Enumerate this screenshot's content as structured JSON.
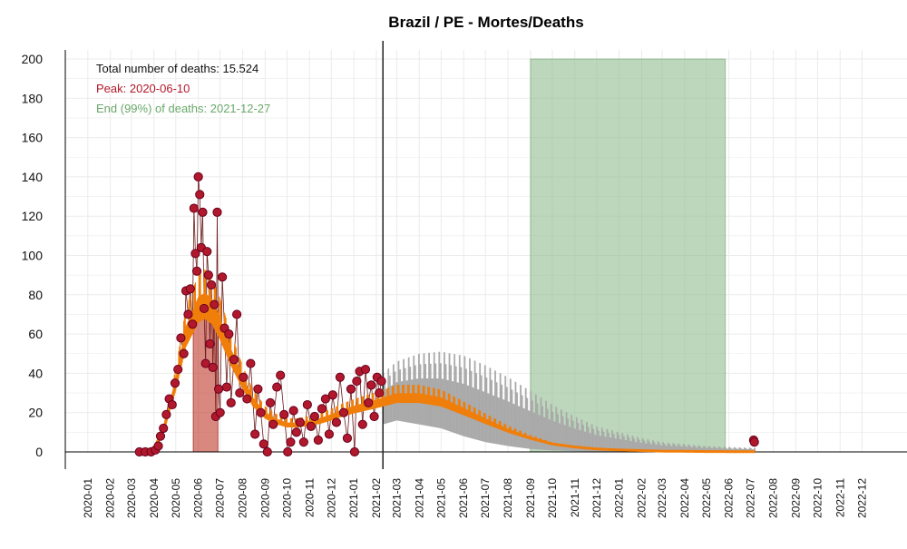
{
  "chart_data": {
    "type": "scatter",
    "title": "Brazil / PE - Mortes/Deaths",
    "xlabel": "",
    "ylabel": "",
    "ylim": [
      0,
      200
    ],
    "xlim": [
      "2019-12-01",
      "2023-02-01"
    ],
    "y_ticks": [
      0,
      20,
      40,
      60,
      80,
      100,
      120,
      140,
      160,
      180,
      200
    ],
    "x_ticks": [
      "2020-01",
      "2020-02",
      "2020-03",
      "2020-04",
      "2020-05",
      "2020-06",
      "2020-07",
      "2020-08",
      "2020-09",
      "2020-10",
      "2020-11",
      "2020-12",
      "2021-01",
      "2021-02",
      "2021-03",
      "2021-04",
      "2021-05",
      "2021-06",
      "2021-07",
      "2021-08",
      "2021-09",
      "2021-10",
      "2021-11",
      "2021-12",
      "2022-01",
      "2022-02",
      "2022-03",
      "2022-04",
      "2022-05",
      "2022-06",
      "2022-07",
      "2022-08",
      "2022-09",
      "2022-10",
      "2022-11",
      "2022-12"
    ],
    "grid": true,
    "annotations": {
      "total": "Total number of deaths: 15.524",
      "peak": "Peak: 2020-06-10",
      "end": "End (99%) of deaths: 2021-12-27"
    },
    "current_date": "2021-02-10",
    "peak_band": {
      "start": "2020-05-25",
      "end": "2020-06-28"
    },
    "end_band": {
      "start": "2021-09-01",
      "end": "2022-05-27",
      "ymax": 200
    },
    "observed_points": [
      {
        "date": "2020-03-12",
        "deaths": 0
      },
      {
        "date": "2020-03-20",
        "deaths": 0
      },
      {
        "date": "2020-03-28",
        "deaths": 0
      },
      {
        "date": "2020-04-03",
        "deaths": 1
      },
      {
        "date": "2020-04-07",
        "deaths": 3
      },
      {
        "date": "2020-04-10",
        "deaths": 8
      },
      {
        "date": "2020-04-14",
        "deaths": 12
      },
      {
        "date": "2020-04-18",
        "deaths": 19
      },
      {
        "date": "2020-04-22",
        "deaths": 27
      },
      {
        "date": "2020-04-26",
        "deaths": 24
      },
      {
        "date": "2020-04-30",
        "deaths": 35
      },
      {
        "date": "2020-05-04",
        "deaths": 42
      },
      {
        "date": "2020-05-08",
        "deaths": 58
      },
      {
        "date": "2020-05-12",
        "deaths": 50
      },
      {
        "date": "2020-05-15",
        "deaths": 82
      },
      {
        "date": "2020-05-18",
        "deaths": 70
      },
      {
        "date": "2020-05-21",
        "deaths": 83
      },
      {
        "date": "2020-05-24",
        "deaths": 65
      },
      {
        "date": "2020-05-26",
        "deaths": 124
      },
      {
        "date": "2020-05-28",
        "deaths": 101
      },
      {
        "date": "2020-05-30",
        "deaths": 92
      },
      {
        "date": "2020-06-01",
        "deaths": 140
      },
      {
        "date": "2020-06-03",
        "deaths": 131
      },
      {
        "date": "2020-06-05",
        "deaths": 104
      },
      {
        "date": "2020-06-07",
        "deaths": 122
      },
      {
        "date": "2020-06-09",
        "deaths": 73
      },
      {
        "date": "2020-06-11",
        "deaths": 45
      },
      {
        "date": "2020-06-13",
        "deaths": 102
      },
      {
        "date": "2020-06-15",
        "deaths": 90
      },
      {
        "date": "2020-06-17",
        "deaths": 55
      },
      {
        "date": "2020-06-19",
        "deaths": 85
      },
      {
        "date": "2020-06-21",
        "deaths": 43
      },
      {
        "date": "2020-06-23",
        "deaths": 75
      },
      {
        "date": "2020-06-25",
        "deaths": 18
      },
      {
        "date": "2020-06-27",
        "deaths": 122
      },
      {
        "date": "2020-06-29",
        "deaths": 32
      },
      {
        "date": "2020-07-01",
        "deaths": 20
      },
      {
        "date": "2020-07-04",
        "deaths": 89
      },
      {
        "date": "2020-07-07",
        "deaths": 63
      },
      {
        "date": "2020-07-10",
        "deaths": 33
      },
      {
        "date": "2020-07-13",
        "deaths": 60
      },
      {
        "date": "2020-07-16",
        "deaths": 25
      },
      {
        "date": "2020-07-20",
        "deaths": 47
      },
      {
        "date": "2020-07-24",
        "deaths": 70
      },
      {
        "date": "2020-07-28",
        "deaths": 30
      },
      {
        "date": "2020-08-02",
        "deaths": 38
      },
      {
        "date": "2020-08-07",
        "deaths": 27
      },
      {
        "date": "2020-08-12",
        "deaths": 45
      },
      {
        "date": "2020-08-18",
        "deaths": 9
      },
      {
        "date": "2020-08-22",
        "deaths": 32
      },
      {
        "date": "2020-08-26",
        "deaths": 20
      },
      {
        "date": "2020-08-30",
        "deaths": 4
      },
      {
        "date": "2020-09-04",
        "deaths": 0
      },
      {
        "date": "2020-09-08",
        "deaths": 25
      },
      {
        "date": "2020-09-12",
        "deaths": 14
      },
      {
        "date": "2020-09-17",
        "deaths": 33
      },
      {
        "date": "2020-09-22",
        "deaths": 39
      },
      {
        "date": "2020-09-27",
        "deaths": 19
      },
      {
        "date": "2020-10-02",
        "deaths": 0
      },
      {
        "date": "2020-10-06",
        "deaths": 5
      },
      {
        "date": "2020-10-10",
        "deaths": 21
      },
      {
        "date": "2020-10-14",
        "deaths": 10
      },
      {
        "date": "2020-10-19",
        "deaths": 15
      },
      {
        "date": "2020-10-24",
        "deaths": 5
      },
      {
        "date": "2020-10-29",
        "deaths": 24
      },
      {
        "date": "2020-11-03",
        "deaths": 13
      },
      {
        "date": "2020-11-08",
        "deaths": 18
      },
      {
        "date": "2020-11-13",
        "deaths": 6
      },
      {
        "date": "2020-11-18",
        "deaths": 22
      },
      {
        "date": "2020-11-23",
        "deaths": 27
      },
      {
        "date": "2020-11-28",
        "deaths": 9
      },
      {
        "date": "2020-12-03",
        "deaths": 29
      },
      {
        "date": "2020-12-08",
        "deaths": 15
      },
      {
        "date": "2020-12-13",
        "deaths": 38
      },
      {
        "date": "2020-12-18",
        "deaths": 20
      },
      {
        "date": "2020-12-23",
        "deaths": 7
      },
      {
        "date": "2020-12-28",
        "deaths": 32
      },
      {
        "date": "2021-01-02",
        "deaths": 0
      },
      {
        "date": "2021-01-05",
        "deaths": 36
      },
      {
        "date": "2021-01-09",
        "deaths": 41
      },
      {
        "date": "2021-01-13",
        "deaths": 14
      },
      {
        "date": "2021-01-17",
        "deaths": 42
      },
      {
        "date": "2021-01-21",
        "deaths": 25
      },
      {
        "date": "2021-01-25",
        "deaths": 34
      },
      {
        "date": "2021-01-29",
        "deaths": 18
      },
      {
        "date": "2021-02-02",
        "deaths": 38
      },
      {
        "date": "2021-02-05",
        "deaths": 30
      },
      {
        "date": "2021-02-08",
        "deaths": 36
      },
      {
        "date": "2022-07-05",
        "deaths": 6
      },
      {
        "date": "2022-07-06",
        "deaths": 5
      }
    ],
    "fit_curve": [
      {
        "date": "2020-03-10",
        "deaths": 0
      },
      {
        "date": "2020-04-01",
        "deaths": 2
      },
      {
        "date": "2020-04-15",
        "deaths": 12
      },
      {
        "date": "2020-05-01",
        "deaths": 35
      },
      {
        "date": "2020-05-15",
        "deaths": 60
      },
      {
        "date": "2020-06-01",
        "deaths": 74
      },
      {
        "date": "2020-06-10",
        "deaths": 76
      },
      {
        "date": "2020-06-20",
        "deaths": 73
      },
      {
        "date": "2020-07-01",
        "deaths": 64
      },
      {
        "date": "2020-07-15",
        "deaths": 50
      },
      {
        "date": "2020-08-01",
        "deaths": 36
      },
      {
        "date": "2020-08-15",
        "deaths": 26
      },
      {
        "date": "2020-09-01",
        "deaths": 19
      },
      {
        "date": "2020-09-15",
        "deaths": 16
      },
      {
        "date": "2020-10-01",
        "deaths": 14
      },
      {
        "date": "2020-10-15",
        "deaths": 14
      },
      {
        "date": "2020-11-01",
        "deaths": 15
      },
      {
        "date": "2020-11-15",
        "deaths": 16
      },
      {
        "date": "2020-12-01",
        "deaths": 18
      },
      {
        "date": "2020-12-15",
        "deaths": 20
      },
      {
        "date": "2021-01-01",
        "deaths": 22
      },
      {
        "date": "2021-02-01",
        "deaths": 25
      },
      {
        "date": "2021-03-01",
        "deaths": 28
      },
      {
        "date": "2021-04-01",
        "deaths": 28
      },
      {
        "date": "2021-05-01",
        "deaths": 26
      },
      {
        "date": "2021-06-01",
        "deaths": 21
      },
      {
        "date": "2021-07-01",
        "deaths": 16
      },
      {
        "date": "2021-08-01",
        "deaths": 11
      },
      {
        "date": "2021-09-01",
        "deaths": 7
      },
      {
        "date": "2021-10-01",
        "deaths": 4
      },
      {
        "date": "2021-11-01",
        "deaths": 2.5
      },
      {
        "date": "2021-12-01",
        "deaths": 1.5
      },
      {
        "date": "2022-01-01",
        "deaths": 1
      },
      {
        "date": "2022-03-01",
        "deaths": 0.4
      },
      {
        "date": "2022-05-01",
        "deaths": 0.2
      },
      {
        "date": "2022-07-07",
        "deaths": 0.1
      }
    ],
    "forecast_band": [
      {
        "date": "2021-02-10",
        "lower": 14,
        "upper": 40
      },
      {
        "date": "2021-03-01",
        "lower": 16,
        "upper": 46
      },
      {
        "date": "2021-04-01",
        "lower": 14,
        "upper": 50
      },
      {
        "date": "2021-05-01",
        "lower": 12,
        "upper": 51
      },
      {
        "date": "2021-06-01",
        "lower": 8,
        "upper": 49
      },
      {
        "date": "2021-07-01",
        "lower": 5,
        "upper": 44
      },
      {
        "date": "2021-08-01",
        "lower": 3,
        "upper": 38
      },
      {
        "date": "2021-09-01",
        "lower": 1.5,
        "upper": 31
      },
      {
        "date": "2021-10-01",
        "lower": 0.8,
        "upper": 24
      },
      {
        "date": "2021-11-01",
        "lower": 0.4,
        "upper": 18
      },
      {
        "date": "2021-12-01",
        "lower": 0.2,
        "upper": 13
      },
      {
        "date": "2022-01-01",
        "lower": 0.1,
        "upper": 10
      },
      {
        "date": "2022-02-01",
        "lower": 0,
        "upper": 7
      },
      {
        "date": "2022-03-01",
        "lower": 0,
        "upper": 5
      },
      {
        "date": "2022-04-01",
        "lower": 0,
        "upper": 4
      },
      {
        "date": "2022-05-01",
        "lower": 0,
        "upper": 3
      },
      {
        "date": "2022-06-01",
        "lower": 0,
        "upper": 2.5
      },
      {
        "date": "2022-07-07",
        "lower": 0,
        "upper": 2
      }
    ],
    "colors": {
      "points_fill": "#b2182b",
      "points_stroke": "#67001f",
      "fit_curve": "#f07e0a",
      "forecast_band": "#a9a9a9",
      "peak_band": "#c0392b",
      "end_band": "#8fbc8f",
      "peak_text": "#b2182b",
      "end_text": "#6aa86a",
      "grid": "#ebebeb",
      "axis": "#000000",
      "current_line": "#222222"
    }
  }
}
